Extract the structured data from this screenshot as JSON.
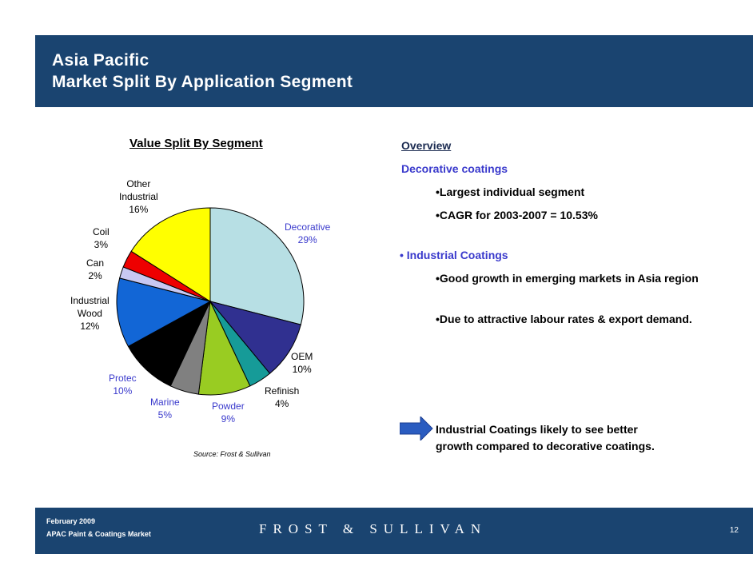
{
  "header": {
    "title_line1": "Asia Pacific",
    "title_line2": "Market Split By Application Segment"
  },
  "chart_data": {
    "type": "pie",
    "title": "Value Split By Segment",
    "slices": [
      {
        "label": "Decorative",
        "value": 29,
        "pct": "29%",
        "color": "#b7dfe4"
      },
      {
        "label": "OEM",
        "value": 10,
        "pct": "10%",
        "color": "#303090"
      },
      {
        "label": "Refinish",
        "value": 4,
        "pct": "4%",
        "color": "#169b98"
      },
      {
        "label": "Powder",
        "value": 9,
        "pct": "9%",
        "color": "#99cc22"
      },
      {
        "label": "Marine",
        "value": 5,
        "pct": "5%",
        "color": "#808080"
      },
      {
        "label": "Protec",
        "value": 10,
        "pct": "10%",
        "color": "#000000"
      },
      {
        "label": "Industrial Wood",
        "value": 12,
        "pct": "12%",
        "color": "#1266d6"
      },
      {
        "label": "Can",
        "value": 2,
        "pct": "2%",
        "color": "#c8c8f2"
      },
      {
        "label": "Coil",
        "value": 3,
        "pct": "3%",
        "color": "#ee0000"
      },
      {
        "label": "Other Industrial",
        "value": 16,
        "pct": "16%",
        "color": "#ffff00"
      }
    ]
  },
  "labels": {
    "decorative": {
      "name": "Decorative",
      "pct": "29%"
    },
    "oem": {
      "name": "OEM",
      "pct": "10%"
    },
    "refinish": {
      "name": "Refinish",
      "pct": "4%"
    },
    "powder": {
      "name": "Powder",
      "pct": "9%"
    },
    "marine": {
      "name": "Marine",
      "pct": "5%"
    },
    "protec": {
      "name": "Protec",
      "pct": "10%"
    },
    "industrial_wood": {
      "line1": "Industrial",
      "line2": "Wood",
      "pct": "12%"
    },
    "can": {
      "name": "Can",
      "pct": "2%"
    },
    "coil": {
      "name": "Coil",
      "pct": "3%"
    },
    "other_industrial": {
      "line1": "Other",
      "line2": "Industrial",
      "pct": "16%"
    }
  },
  "source": "Source: Frost & Sullivan",
  "overview": {
    "heading": "Overview",
    "decorative_heading": "Decorative coatings",
    "decorative_bullets": [
      "•Largest individual segment",
      "•CAGR for 2003-2007 = 10.53%"
    ],
    "industrial_heading": "• Industrial Coatings",
    "industrial_bullets": [
      "•Good growth in emerging markets in Asia region",
      "•Due to attractive labour rates & export demand."
    ],
    "conclusion_line1": "Industrial Coatings likely to see better",
    "conclusion_line2": "growth compared to decorative coatings."
  },
  "footer": {
    "date": "February  2009",
    "subtitle": "APAC Paint & Coatings Market",
    "logo": "FROST & SULLIVAN",
    "page": "12"
  },
  "colors": {
    "navy": "#1a4470",
    "arrow": "#2a5cc0",
    "accent_text": "#3a3acc"
  }
}
